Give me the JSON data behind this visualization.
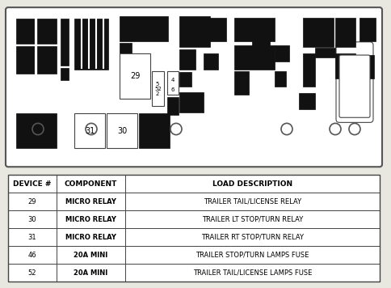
{
  "bg_color": "#e8e8e0",
  "table_headers": [
    "DEVICE #",
    "COMPONENT",
    "LOAD DESCRIPTION"
  ],
  "table_rows": [
    [
      "29",
      "MICRO RELAY",
      "TRAILER TAIL/LICENSE RELAY"
    ],
    [
      "30",
      "MICRO RELAY",
      "TRAILER LT STOP/TURN RELAY"
    ],
    [
      "31",
      "MICRO RELAY",
      "TRAILER RT STOP/TURN RELAY"
    ],
    [
      "46",
      "20A MINI",
      "TRAILER STOP/TURN LAMPS FUSE"
    ],
    [
      "52",
      "20A MINI",
      "TRAILER TAIL/LICENSE LAMPS FUSE"
    ]
  ],
  "blk_color": "#111111",
  "border_color": "#555555",
  "line_color": "#444444"
}
